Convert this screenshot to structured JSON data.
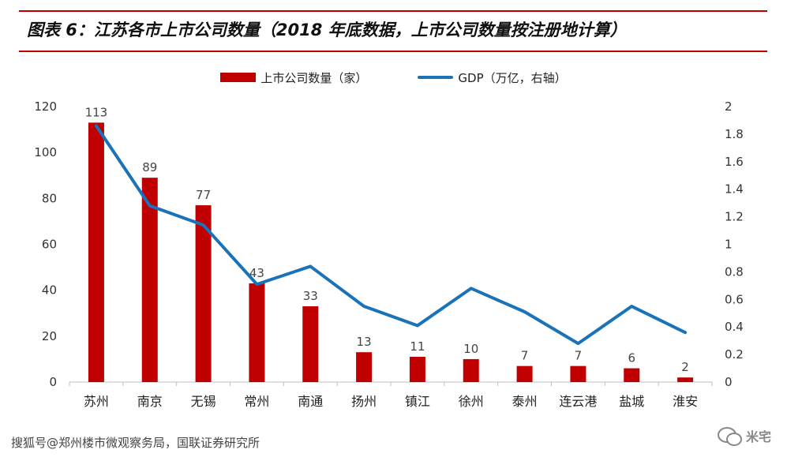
{
  "header": {
    "title": "图表 6：江苏各市上市公司数量（2018 年底数据，上市公司数量按注册地计算）"
  },
  "legend": {
    "bar_label": "上市公司数量（家）",
    "line_label": "GDP（万亿，右轴）"
  },
  "colors": {
    "bar": "#c00000",
    "line": "#1a73b8",
    "rule": "#c00000"
  },
  "footer": {
    "source_text": "搜狐号@郑州楼市微观察务局，国联证券研究所",
    "watermark_text": "米宅",
    "watermark_icon": "wechat-icon"
  },
  "chart_data": {
    "type": "bar",
    "categories": [
      "苏州",
      "南京",
      "无锡",
      "常州",
      "南通",
      "扬州",
      "镇江",
      "徐州",
      "泰州",
      "连云港",
      "盐城",
      "淮安"
    ],
    "series": [
      {
        "name": "上市公司数量（家）",
        "type": "bar",
        "axis": "left",
        "values": [
          113,
          89,
          77,
          43,
          33,
          13,
          11,
          10,
          7,
          7,
          6,
          2
        ],
        "data_labels": [
          "113",
          "89",
          "77",
          "43",
          "33",
          "13",
          "11",
          "10",
          "7",
          "7",
          "6",
          "2"
        ]
      },
      {
        "name": "GDP（万亿，右轴）",
        "type": "line",
        "axis": "right",
        "values": [
          1.86,
          1.28,
          1.14,
          0.71,
          0.84,
          0.55,
          0.41,
          0.68,
          0.51,
          0.28,
          0.55,
          0.36
        ]
      }
    ],
    "y_left": {
      "ylim": [
        0,
        120
      ],
      "ticks": [
        0,
        20,
        40,
        60,
        80,
        100,
        120
      ],
      "tick_labels": [
        "0",
        "20",
        "40",
        "60",
        "80",
        "100",
        "120"
      ]
    },
    "y_right": {
      "ylim": [
        0,
        2
      ],
      "ticks": [
        0,
        0.2,
        0.4,
        0.6,
        0.8,
        1,
        1.2,
        1.4,
        1.6,
        1.8,
        2
      ],
      "tick_labels": [
        "0",
        "0.2",
        "0.4",
        "0.6",
        "0.8",
        "1",
        "1.2",
        "1.4",
        "1.6",
        "1.8",
        "2"
      ]
    },
    "grid": false,
    "legend_position": "top"
  }
}
